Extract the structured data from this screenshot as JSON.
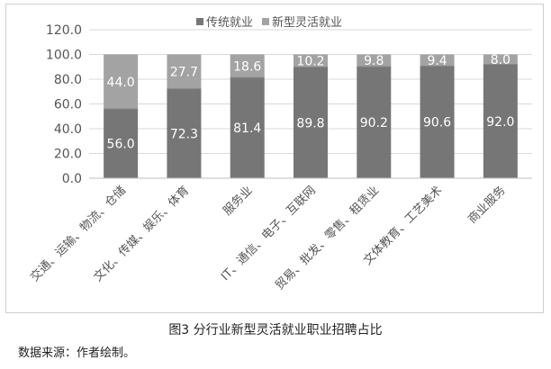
{
  "chart_data": {
    "type": "bar",
    "stacked": true,
    "title": "",
    "xlabel": "",
    "ylabel": "",
    "ylim": [
      0,
      120
    ],
    "yticks": [
      "0.0",
      "20.0",
      "40.0",
      "60.0",
      "80.0",
      "100.0",
      "120.0"
    ],
    "grid": true,
    "legend_position": "top",
    "categories": [
      "交通、运输、物流、仓储",
      "文化、传媒、娱乐、体育",
      "服务业",
      "IT、通信、电子、互联网",
      "贸易、批发、零售、租赁业",
      "文体教育、工艺美术",
      "商业服务"
    ],
    "series": [
      {
        "name": "传统就业",
        "color": "#767676",
        "values": [
          56.0,
          72.3,
          81.4,
          89.8,
          90.2,
          90.6,
          92.0
        ],
        "labels": [
          "56.0",
          "72.3",
          "81.4",
          "89.8",
          "90.2",
          "90.6",
          "92.0"
        ]
      },
      {
        "name": "新型灵活就业",
        "color": "#a3a3a3",
        "values": [
          44.0,
          27.7,
          18.6,
          10.2,
          9.8,
          9.4,
          8.0
        ],
        "labels": [
          "44.0",
          "27.7",
          "18.6",
          "10.2",
          "9.8",
          "9.4",
          "8.0"
        ]
      }
    ]
  },
  "caption": "图3 分行业新型灵活就业职业招聘占比",
  "source": "数据来源：作者绘制。"
}
